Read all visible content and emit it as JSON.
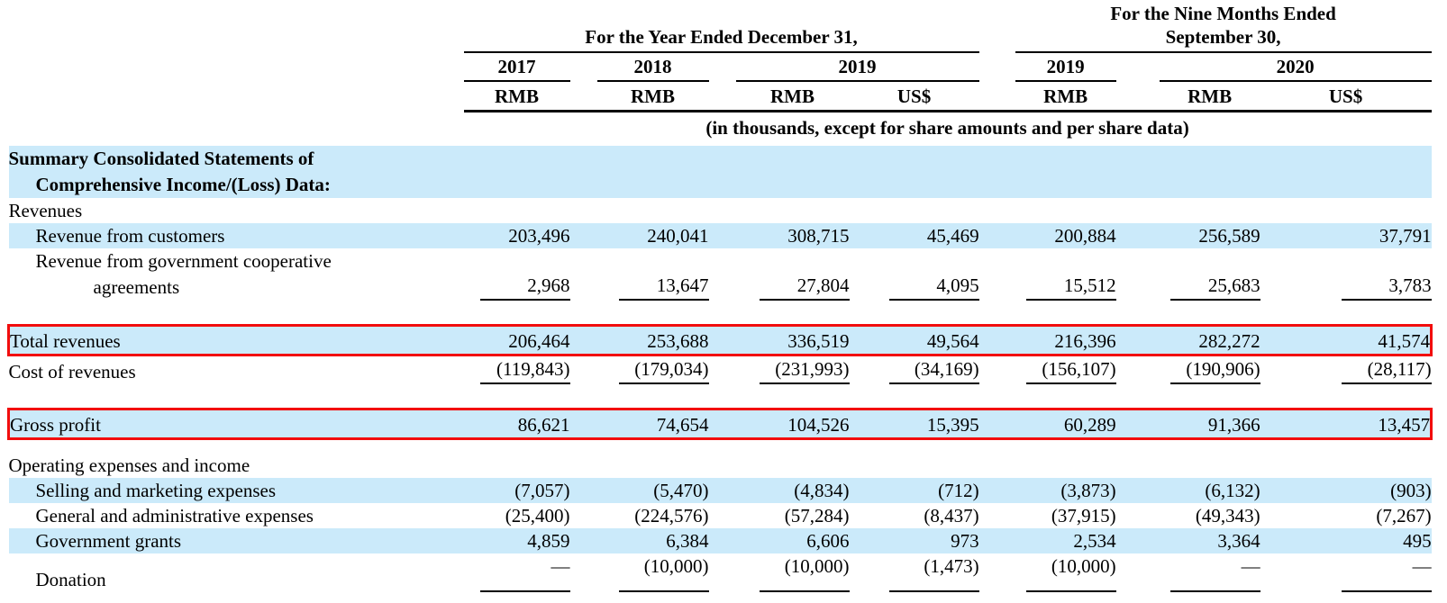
{
  "table": {
    "header": {
      "group_year": "For the Year Ended December 31,",
      "group_nine_months": "For the Nine Months Ended September 30,",
      "years": {
        "y2017": "2017",
        "y2018": "2018",
        "y2019": "2019",
        "nm2019": "2019",
        "nm2020": "2020"
      },
      "currencies": [
        "RMB",
        "RMB",
        "RMB",
        "US$",
        "RMB",
        "RMB",
        "US$"
      ],
      "units_note": "(in thousands, except for share amounts and per share data)"
    },
    "colors": {
      "highlight": "#cbeafa",
      "red_box": "#f20d0d"
    },
    "rows": [
      {
        "type": "row",
        "lines": [
          "Summary Consolidated Statements of",
          "Comprehensive Income/(Loss) Data:"
        ],
        "bold": true,
        "highlight": true,
        "values": null
      },
      {
        "type": "row",
        "label": "Revenues",
        "values": null
      },
      {
        "type": "row",
        "label": "Revenue from customers",
        "indent": 1,
        "highlight": true,
        "values": [
          "203,496",
          "240,041",
          "308,715",
          "45,469",
          "200,884",
          "256,589",
          "37,791"
        ]
      },
      {
        "type": "row",
        "lines": [
          "Revenue from government cooperative",
          "agreements"
        ],
        "indent": 1,
        "rule": true,
        "values": [
          "2,968",
          "13,647",
          "27,804",
          "4,095",
          "15,512",
          "25,683",
          "3,783"
        ]
      },
      {
        "type": "gap"
      },
      {
        "type": "row",
        "label": "Total revenues",
        "highlight": true,
        "redbox": true,
        "values": [
          "206,464",
          "253,688",
          "336,519",
          "49,564",
          "216,396",
          "282,272",
          "41,574"
        ]
      },
      {
        "type": "row",
        "label": "Cost of revenues",
        "rule": true,
        "values": [
          "(119,843)",
          "(179,034)",
          "(231,993)",
          "(34,169)",
          "(156,107)",
          "(190,906)",
          "(28,117)"
        ]
      },
      {
        "type": "gap"
      },
      {
        "type": "row",
        "label": "Gross profit",
        "highlight": true,
        "redbox": true,
        "values": [
          "86,621",
          "74,654",
          "104,526",
          "15,395",
          "60,289",
          "91,366",
          "13,457"
        ]
      },
      {
        "type": "gap",
        "small": true
      },
      {
        "type": "row",
        "label": "Operating expenses and income",
        "values": null
      },
      {
        "type": "row",
        "label": "Selling and marketing expenses",
        "indent": 1,
        "highlight": true,
        "values": [
          "(7,057)",
          "(5,470)",
          "(4,834)",
          "(712)",
          "(3,873)",
          "(6,132)",
          "(903)"
        ]
      },
      {
        "type": "row",
        "label": "General and administrative expenses",
        "indent": 1,
        "values": [
          "(25,400)",
          "(224,576)",
          "(57,284)",
          "(8,437)",
          "(37,915)",
          "(49,343)",
          "(7,267)"
        ]
      },
      {
        "type": "row",
        "label": "Government grants",
        "indent": 1,
        "highlight": true,
        "values": [
          "4,859",
          "6,384",
          "6,606",
          "973",
          "2,534",
          "3,364",
          "495"
        ]
      },
      {
        "type": "row",
        "label": "Donation",
        "indent": 1,
        "rule": true,
        "rule_gap": true,
        "values": [
          "—",
          "(10,000)",
          "(10,000)",
          "(1,473)",
          "(10,000)",
          "—",
          "—"
        ]
      }
    ]
  }
}
